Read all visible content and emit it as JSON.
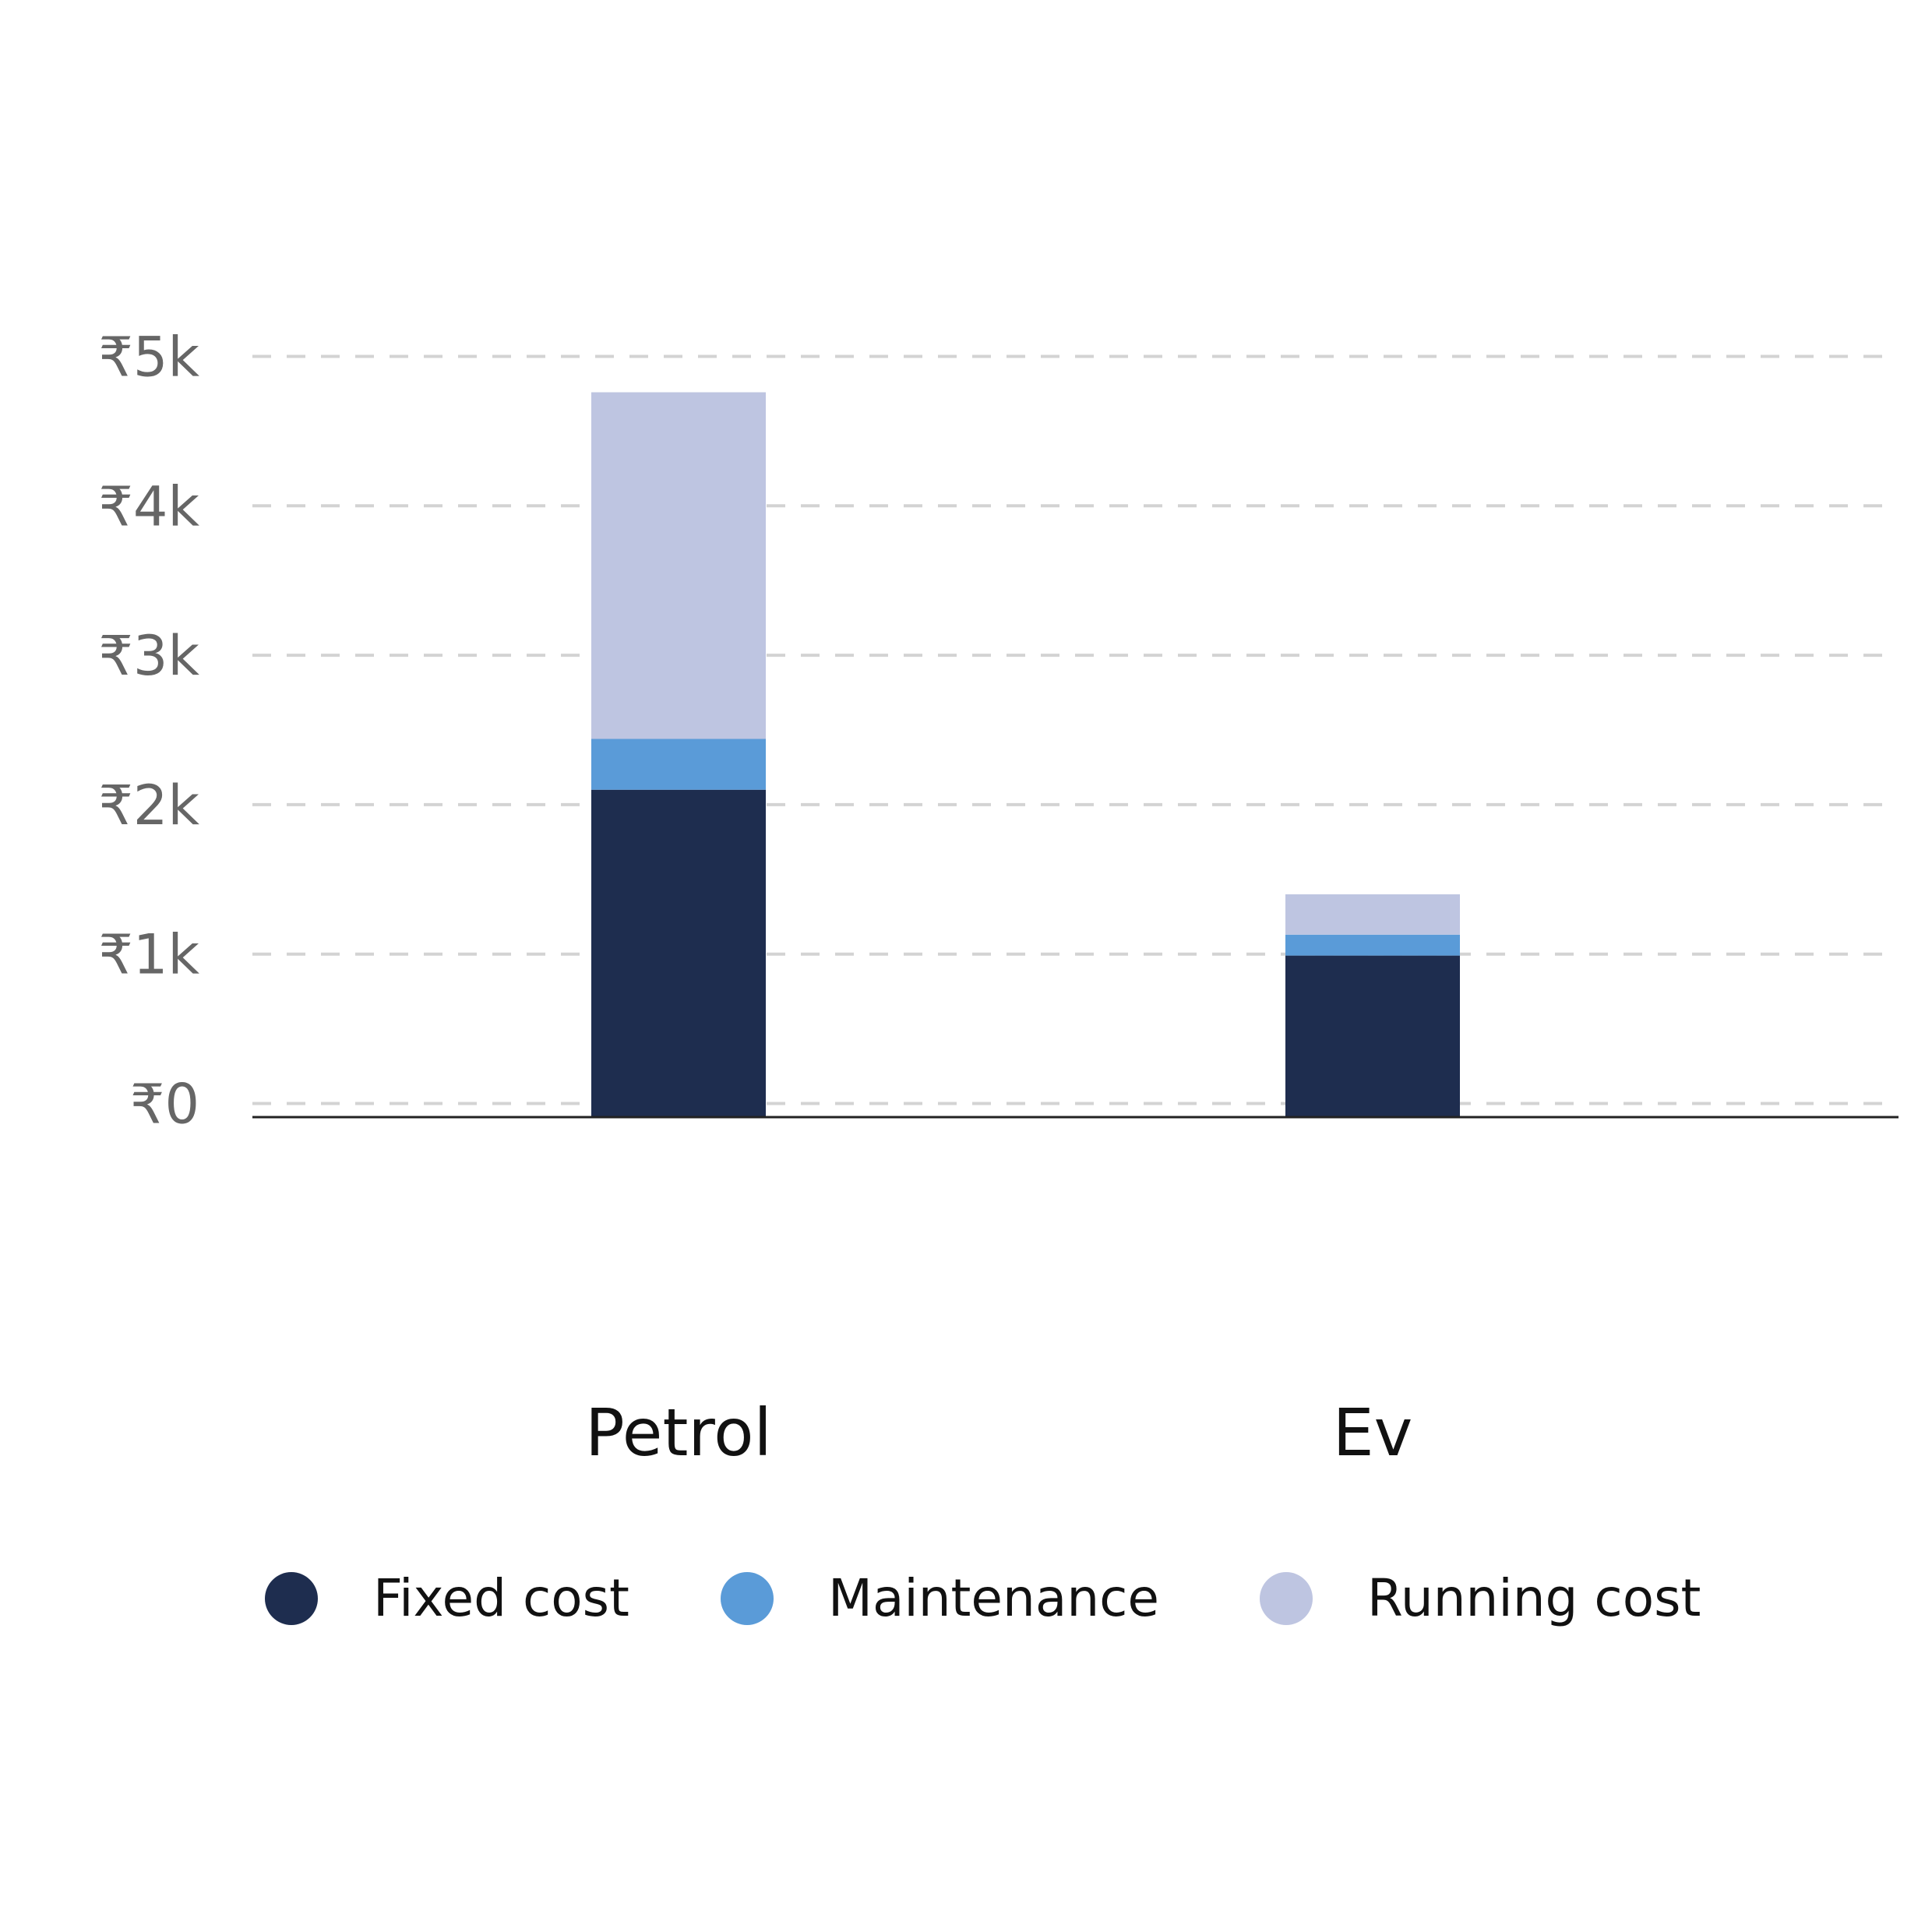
{
  "chart_data": {
    "type": "bar",
    "stacked": true,
    "title": "",
    "xlabel": "",
    "ylabel": "",
    "categories": [
      "Petrol",
      "Ev"
    ],
    "series": [
      {
        "name": "Fixed cost",
        "color": "#1e2d4f",
        "values": [
          2100,
          990
        ]
      },
      {
        "name": "Maintenance",
        "color": "#5a9bd8",
        "values": [
          340,
          140
        ]
      },
      {
        "name": "Running cost",
        "color": "#bec5e1",
        "values": [
          2320,
          270
        ]
      }
    ],
    "ylim": [
      0,
      5000
    ],
    "yticks": [
      0,
      1000,
      2000,
      3000,
      4000,
      5000
    ],
    "ytick_labels": [
      "₹0",
      "₹1k",
      "₹2k",
      "₹3k",
      "₹4k",
      "₹5k"
    ],
    "grid": true,
    "legend_position": "bottom"
  }
}
